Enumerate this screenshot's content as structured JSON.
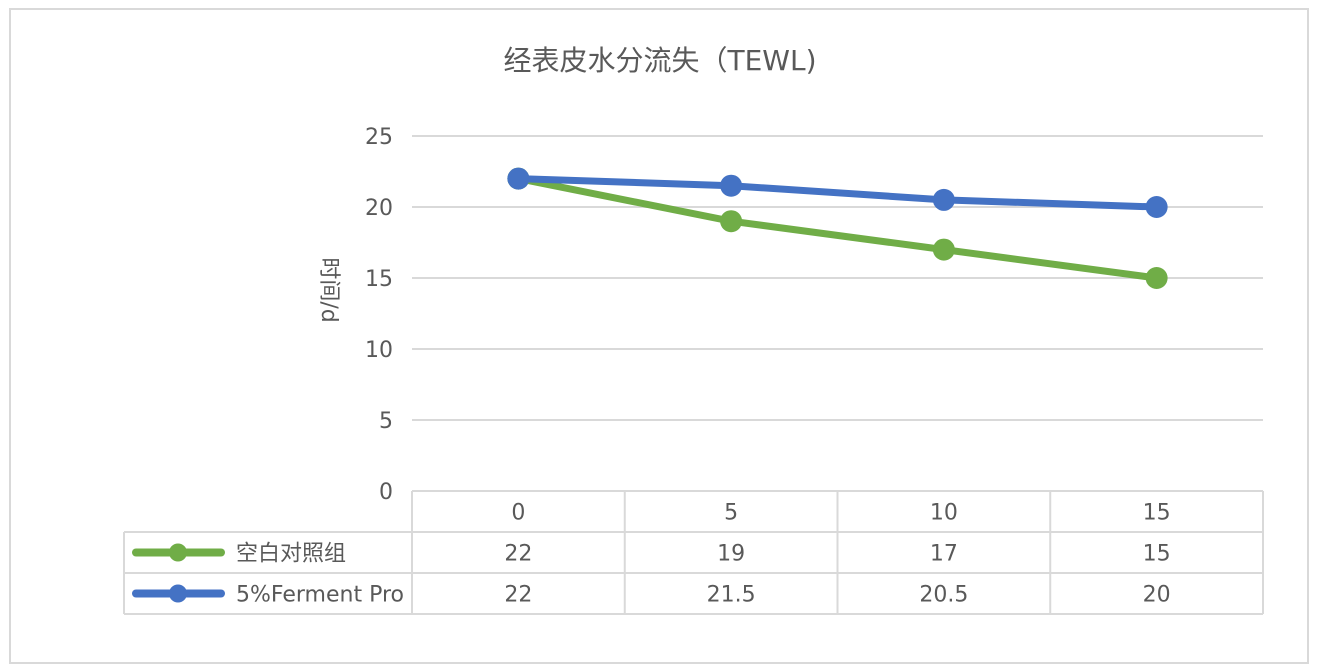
{
  "chart_data": {
    "type": "line",
    "title": "经表皮水分流失（TEWL)",
    "ylabel": "时间/d",
    "xlabel": "",
    "categories": [
      "0",
      "5",
      "10",
      "15"
    ],
    "ylim": [
      0,
      25
    ],
    "yticks": [
      0,
      5,
      10,
      15,
      20,
      25
    ],
    "grid": true,
    "legend": "data-table",
    "series": [
      {
        "name": "空白对照组",
        "values": [
          22,
          19,
          17,
          15
        ],
        "display_values": [
          "22",
          "19",
          "17",
          "15"
        ],
        "color": "#70ad47"
      },
      {
        "name": "5%Ferment Pro",
        "values": [
          22,
          21.5,
          20.5,
          20
        ],
        "display_values": [
          "22",
          "21.5",
          "20.5",
          "20"
        ],
        "color": "#4472c4"
      }
    ]
  }
}
